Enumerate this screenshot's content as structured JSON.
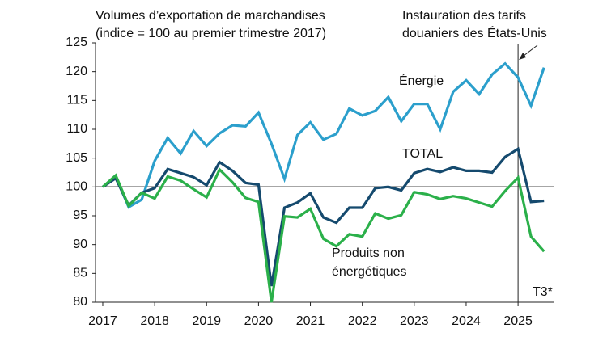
{
  "chart_data": {
    "type": "line",
    "title_lines": [
      "Volumes d’exportation de marchandises",
      "(indice = 100 au premier trimestre 2017)"
    ],
    "annotation_lines": [
      "Instauration des tarifs",
      "douaniers des États-Unis"
    ],
    "annotation_x": 2025,
    "reference_y": 100,
    "period_label": "T3*",
    "x": [
      2017,
      2017.25,
      2017.5,
      2017.75,
      2018,
      2018.25,
      2018.5,
      2018.75,
      2019,
      2019.25,
      2019.5,
      2019.75,
      2020,
      2020.25,
      2020.5,
      2020.75,
      2021,
      2021.25,
      2021.5,
      2021.75,
      2022,
      2022.25,
      2022.5,
      2022.75,
      2023,
      2023.25,
      2023.5,
      2023.75,
      2024,
      2024.25,
      2024.5,
      2024.75,
      2025,
      2025.25,
      2025.5
    ],
    "series": [
      {
        "name": "Énergie",
        "color": "#2b9fcc",
        "values": [
          100,
          101.8,
          96.5,
          97.8,
          104.5,
          108.5,
          105.8,
          109.7,
          107.1,
          109.3,
          110.7,
          110.5,
          112.9,
          107.5,
          101.4,
          109,
          111.2,
          108.2,
          109.2,
          113.6,
          112.4,
          113.2,
          115.6,
          111.4,
          114.4,
          114.4,
          110,
          116.5,
          118.5,
          116.1,
          119.5,
          121.4,
          119,
          114.1,
          120.7
        ]
      },
      {
        "name": "TOTAL",
        "color": "#154a6e",
        "values": [
          100,
          101.5,
          96.8,
          99,
          99.8,
          103.1,
          102.4,
          101.7,
          100.3,
          104.3,
          102.8,
          100.7,
          100.4,
          82.8,
          96.4,
          97.3,
          98.9,
          94.7,
          93.8,
          96.4,
          96.4,
          99.8,
          100,
          99.4,
          102.4,
          103.1,
          102.6,
          103.4,
          102.8,
          102.8,
          102.5,
          105.2,
          106.6,
          97.4,
          97.6
        ]
      },
      {
        "name": "Produits non énergétiques",
        "color": "#2bb04a",
        "values": [
          100,
          102,
          96.7,
          99,
          98,
          101.8,
          101.1,
          99.6,
          98.2,
          103,
          100.8,
          98.1,
          97.4,
          80,
          94.9,
          94.7,
          96.2,
          91,
          89.7,
          91.8,
          91.4,
          95.4,
          94.5,
          95.1,
          99.1,
          98.7,
          97.9,
          98.4,
          98,
          97.3,
          96.6,
          99.3,
          101.6,
          91.4,
          88.8
        ]
      }
    ],
    "xlim": [
      2016.86,
      2025.7
    ],
    "xticks": [
      2017,
      2018,
      2019,
      2020,
      2021,
      2022,
      2023,
      2024,
      2025
    ],
    "ylim": [
      80,
      125
    ],
    "yticks": [
      80,
      85,
      90,
      95,
      100,
      105,
      110,
      115,
      120,
      125
    ]
  }
}
